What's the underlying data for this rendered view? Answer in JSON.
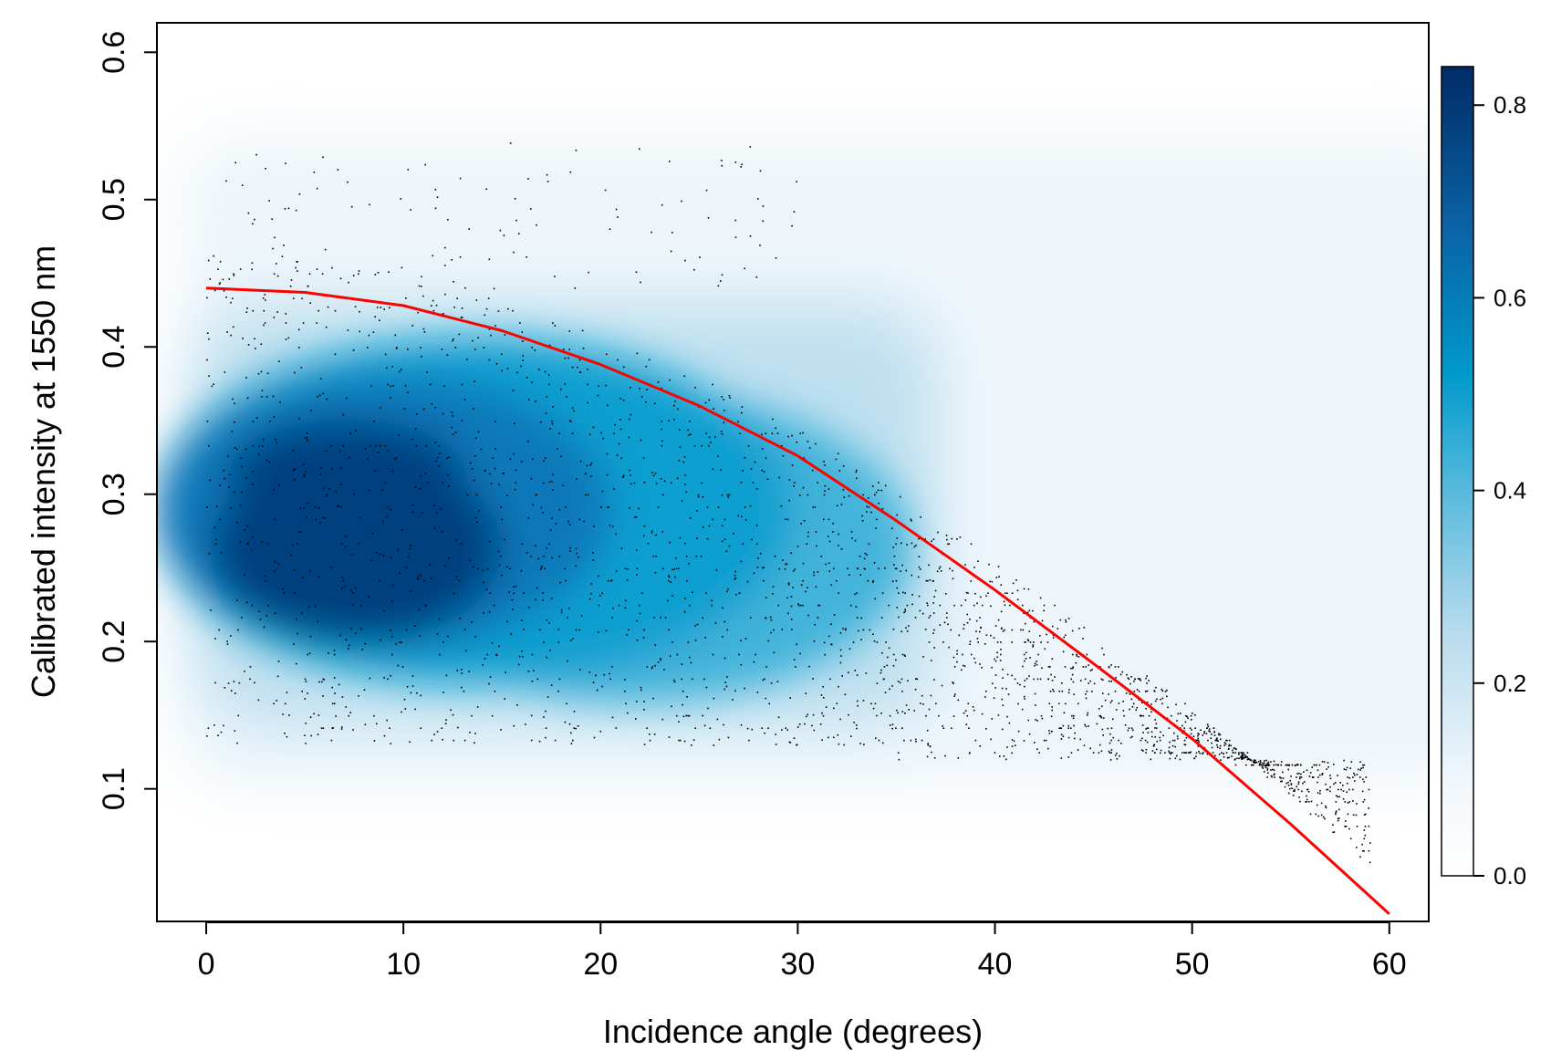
{
  "colors": {
    "curve": "#ff0000",
    "points": "#000000",
    "density_low": "#ffffff",
    "density_mid": "#009fcf",
    "density_high": "#002c66",
    "frame": "#000000"
  },
  "chart_data": {
    "type": "scatter",
    "subtype": "density scatter with fitted curve",
    "title": "",
    "xlabel": "Incidence angle (degrees)",
    "ylabel": "Calibrated intensity at 1550 nm",
    "xlim": [
      -2.5,
      62
    ],
    "ylim": [
      0.01,
      0.62
    ],
    "x_ticks": [
      0,
      10,
      20,
      30,
      40,
      50,
      60
    ],
    "x_tick_labels": [
      "0",
      "10",
      "20",
      "30",
      "40",
      "50",
      "60"
    ],
    "y_ticks": [
      0.1,
      0.2,
      0.3,
      0.4,
      0.5,
      0.6
    ],
    "y_tick_labels": [
      "0.1",
      "0.2",
      "0.3",
      "0.4",
      "0.5",
      "0.6"
    ],
    "grid": false,
    "fitted_curve": {
      "name": "fit",
      "x": [
        0,
        5,
        10,
        15,
        20,
        25,
        30,
        35,
        40,
        45,
        50,
        55,
        60
      ],
      "y": [
        0.44,
        0.437,
        0.428,
        0.411,
        0.388,
        0.36,
        0.326,
        0.282,
        0.235,
        0.185,
        0.134,
        0.076,
        0.015
      ]
    },
    "density": {
      "description": "kernel density of points (normalized)",
      "peak": {
        "x": 9,
        "y": 0.25
      },
      "colorbar": {
        "ticks": [
          0.0,
          0.2,
          0.4,
          0.6,
          0.8
        ],
        "tick_labels": [
          "0.0",
          "0.2",
          "0.4",
          "0.6",
          "0.8"
        ],
        "range": [
          0.0,
          0.84
        ]
      }
    }
  }
}
